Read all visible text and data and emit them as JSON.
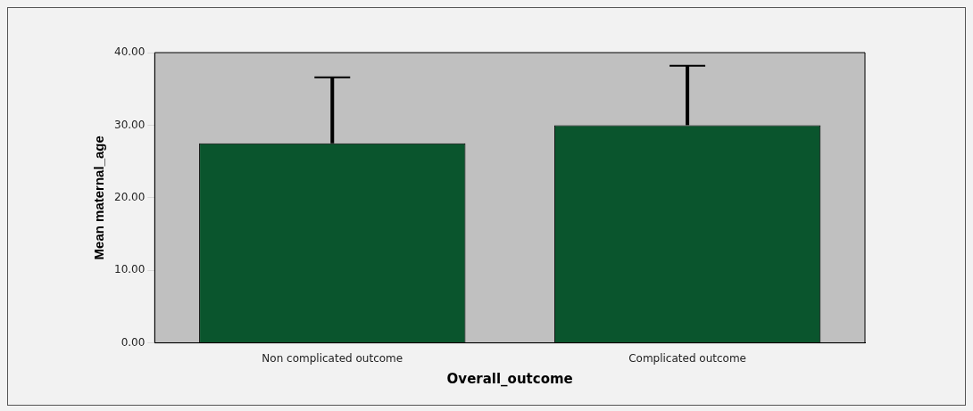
{
  "chart_data": {
    "type": "bar",
    "xlabel": "Overall_outcome",
    "ylabel": "Mean maternal_age",
    "categories": [
      "Non complicated outcome",
      "Complicated outcome"
    ],
    "values": [
      27.5,
      30.0
    ],
    "color": "#0a552d",
    "errors": [
      [
        27.5,
        36.6
      ],
      [
        30.0,
        38.2
      ]
    ],
    "ylim": [
      0,
      40
    ],
    "yticks": [
      {
        "value": 0,
        "label": "0.00"
      },
      {
        "value": 10,
        "label": "10.00"
      },
      {
        "value": 20,
        "label": "20.00"
      },
      {
        "value": 30,
        "label": "30.00"
      },
      {
        "value": 40,
        "label": "40.00"
      }
    ],
    "grid": false,
    "legend": false
  }
}
